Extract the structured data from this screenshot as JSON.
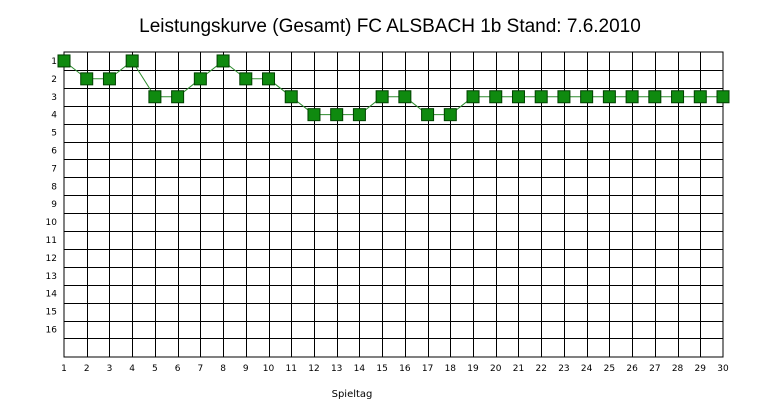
{
  "chart_data": {
    "type": "line",
    "title": "Leistungskurve (Gesamt) FC ALSBACH 1b Stand: 7.6.2010",
    "xlabel": "Spieltag",
    "ylabel": "",
    "x": [
      1,
      2,
      3,
      4,
      5,
      6,
      7,
      8,
      9,
      10,
      11,
      12,
      13,
      14,
      15,
      16,
      17,
      18,
      19,
      20,
      21,
      22,
      23,
      24,
      25,
      26,
      27,
      28,
      29,
      30
    ],
    "series": [
      {
        "values": [
          1,
          2,
          2,
          1,
          3,
          3,
          2,
          1,
          2,
          2,
          3,
          4,
          4,
          4,
          3,
          3,
          4,
          4,
          3,
          3,
          3,
          3,
          3,
          3,
          3,
          3,
          3,
          3,
          3,
          3
        ]
      }
    ],
    "xlim": [
      1,
      30
    ],
    "ylim": [
      0.5,
      17
    ],
    "y_inverted": true,
    "y_ticks": [
      1,
      2,
      3,
      4,
      5,
      6,
      7,
      8,
      9,
      10,
      11,
      12,
      13,
      14,
      15,
      16
    ],
    "grid": true,
    "legend": "none",
    "colors": {
      "line": "#2e8b2e",
      "marker_fill": "#0f8a0f",
      "marker_stroke": "#004000",
      "grid": "#000000"
    }
  }
}
